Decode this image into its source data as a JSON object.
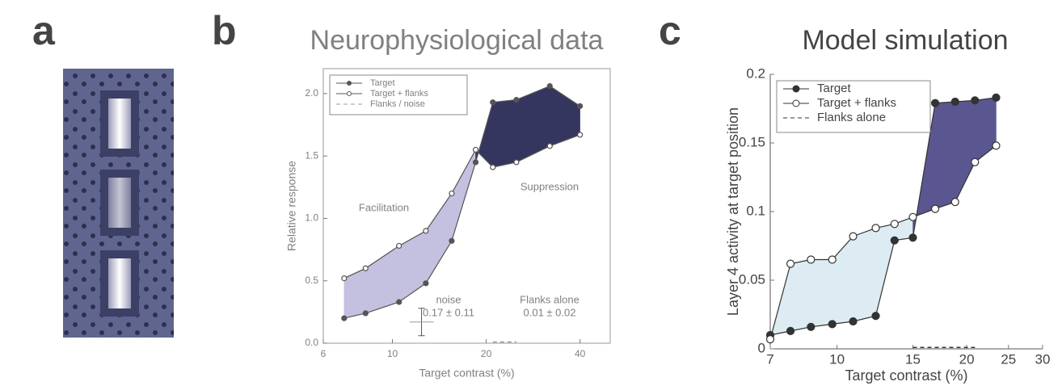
{
  "panel_labels": [
    "a",
    "b",
    "c"
  ],
  "chart_data": [
    {
      "type": "line",
      "title": "Neurophysiological data",
      "x_label": "Target contrast (%)",
      "y_label": "Relative response",
      "log_x": true,
      "legend": "upper left",
      "text_color": "#808080",
      "xlim": [
        6,
        50
      ],
      "xticks": [
        6,
        10,
        20,
        40
      ],
      "ylim": [
        0,
        2.2
      ],
      "yticks": [
        {
          "value": 0,
          "label": "0.0"
        },
        0.5,
        {
          "value": 1,
          "label": "1.0"
        },
        1.5,
        {
          "value": 2,
          "label": "2.0"
        }
      ],
      "x": [
        7,
        8.2,
        10.5,
        12.8,
        15.5,
        18.5,
        21,
        25,
        32,
        40
      ],
      "series": [
        {
          "name": "Target",
          "color": "#555555",
          "marker": "filled",
          "dash": false,
          "values": [
            0.2,
            0.24,
            0.33,
            0.48,
            0.82,
            1.45,
            1.93,
            1.95,
            2.06,
            1.9
          ]
        },
        {
          "name": "Target + flanks",
          "color": "#555555",
          "marker": "open",
          "dash": false,
          "values": [
            0.52,
            0.6,
            0.78,
            0.9,
            1.2,
            1.55,
            1.41,
            1.45,
            1.58,
            1.67
          ]
        },
        {
          "name": "Flanks / noise",
          "color": "#999999",
          "marker": "none",
          "dash": true,
          "values": [
            null,
            null,
            null,
            null,
            null,
            null,
            0.01,
            0.01,
            null,
            null
          ]
        }
      ],
      "fill_colors": [
        "#c4c0e0",
        "#34365f"
      ],
      "annotations": [
        "Facilitation",
        "Suppression",
        "noise",
        "0.17 ± 0.11",
        "Flanks alone",
        "0.01 ± 0.02"
      ],
      "error_bar": {
        "x": 12.4,
        "value": 0.17,
        "error": 0.11
      }
    },
    {
      "type": "line",
      "title": "Model simulation",
      "x_label": "Target contrast (%)",
      "y_label": "Layer 4 activity at target position",
      "log_x": true,
      "legend": "upper left",
      "text_color": "#444444",
      "xlim": [
        7,
        30
      ],
      "xticks": [
        7,
        10,
        15,
        20,
        25,
        30
      ],
      "ylim": [
        0,
        0.2
      ],
      "yticks": [
        0,
        0.05,
        0.1,
        0.15,
        0.2
      ],
      "x": [
        7,
        7.8,
        8.7,
        9.75,
        10.9,
        12.3,
        13.6,
        15,
        16.9,
        18.8,
        20.9,
        23.4
      ],
      "series": [
        {
          "name": "Target",
          "color": "#333333",
          "marker": "filled",
          "dash": false,
          "values": [
            0.01,
            0.013,
            0.016,
            0.018,
            0.02,
            0.024,
            0.079,
            0.081,
            0.179,
            0.18,
            0.181,
            0.183
          ]
        },
        {
          "name": "Target + flanks",
          "color": "#333333",
          "marker": "open",
          "dash": false,
          "values": [
            0.007,
            0.062,
            0.065,
            0.065,
            0.082,
            0.088,
            0.091,
            0.096,
            0.102,
            0.107,
            0.136,
            0.148
          ]
        },
        {
          "name": "Flanks alone",
          "color": "#333333",
          "marker": "none",
          "dash": true,
          "values": [
            null,
            null,
            null,
            null,
            null,
            null,
            null,
            0.001,
            0.001,
            0.001,
            0.001,
            null
          ]
        }
      ],
      "fill_colors": [
        "#dcecf2",
        "#5a5690"
      ],
      "annotations": []
    }
  ]
}
